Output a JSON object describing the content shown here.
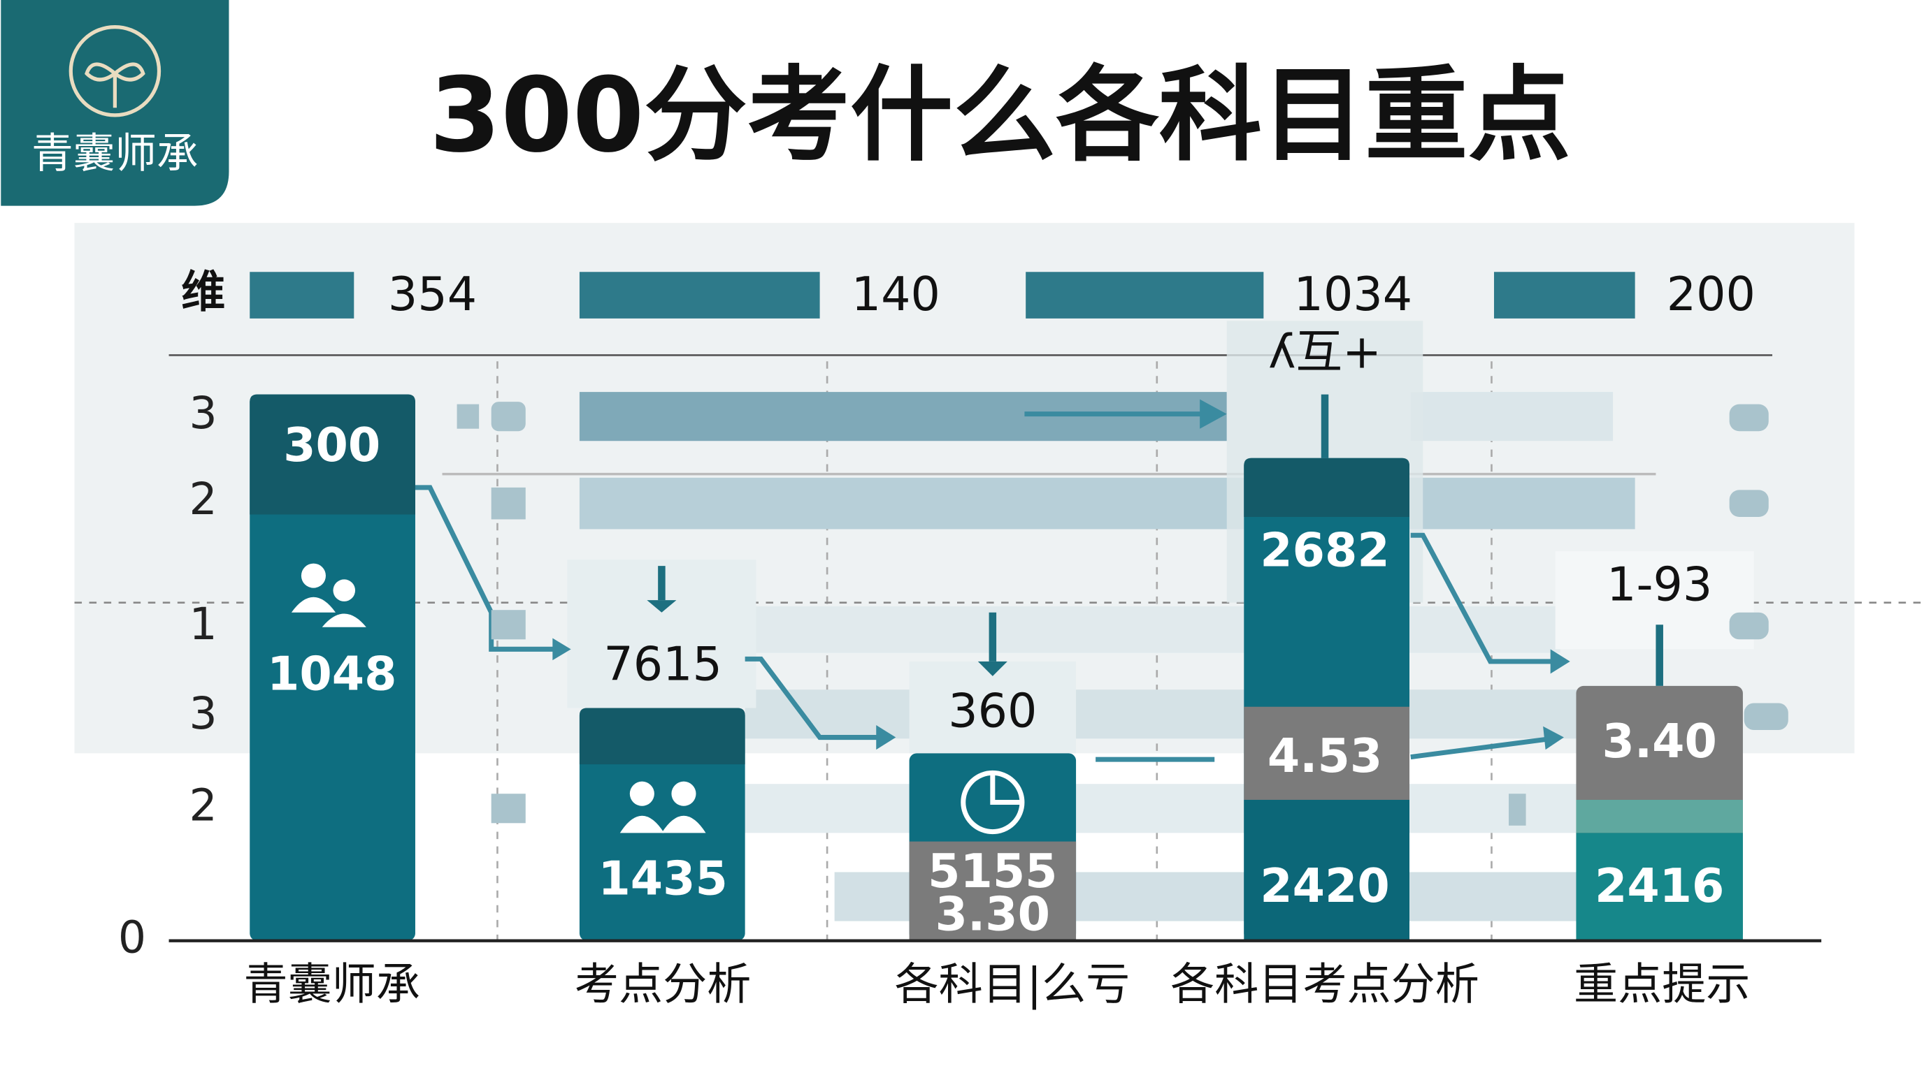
{
  "logo": {
    "text": "青囊师承"
  },
  "title": "300分考什么各科目重点",
  "top_row": {
    "label": "维",
    "values": [
      "354",
      "140",
      "1034",
      "200"
    ]
  },
  "callouts": [
    "ʎ互+",
    "1-93"
  ],
  "y_labels": [
    "3",
    "2",
    "1",
    "3",
    "2",
    "0"
  ],
  "columns": [
    {
      "category": "青囊师承",
      "labels": [
        "300",
        "1048"
      ]
    },
    {
      "category": "考点分析",
      "labels": [
        "7615",
        "1435"
      ]
    },
    {
      "category": "各科目|么亏",
      "labels": [
        "360",
        "5155",
        "3.30"
      ]
    },
    {
      "category": "各科目考点分析",
      "labels": [
        "2682",
        "4.53",
        "2420"
      ]
    },
    {
      "category": "重点提示",
      "labels": [
        "3.40",
        "2416"
      ]
    }
  ]
}
